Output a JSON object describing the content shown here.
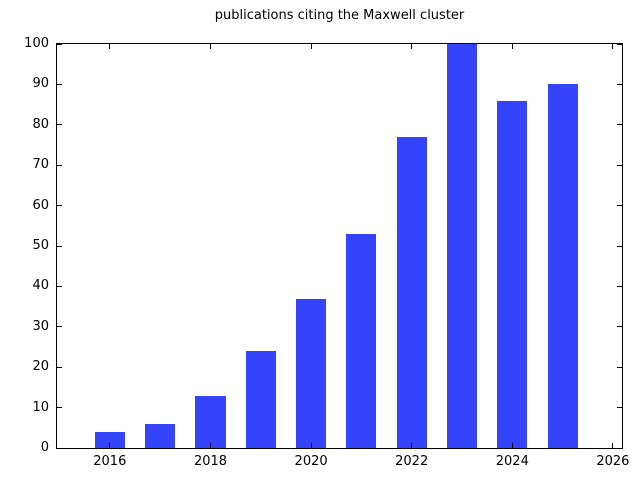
{
  "chart_data": {
    "type": "bar",
    "title": "publications citing the Maxwell cluster",
    "categories": [
      2016,
      2017,
      2018,
      2019,
      2020,
      2021,
      2022,
      2023,
      2024,
      2025
    ],
    "values": [
      4,
      6,
      13,
      24,
      37,
      53,
      77,
      100,
      86,
      90
    ],
    "xlabel": "",
    "ylabel": "",
    "xlim": [
      2014.95,
      2026.18
    ],
    "ylim": [
      0,
      100
    ],
    "xticks": [
      2016,
      2018,
      2020,
      2022,
      2024,
      2026
    ],
    "yticks": [
      0,
      10,
      20,
      30,
      40,
      50,
      60,
      70,
      80,
      90,
      100
    ],
    "bar_width": 0.6,
    "bar_color": "#3544fa",
    "axis_color": "#000000",
    "background": "#ffffff",
    "grid": false,
    "legend": null,
    "tick_direction": "in",
    "tick_length": 5
  }
}
